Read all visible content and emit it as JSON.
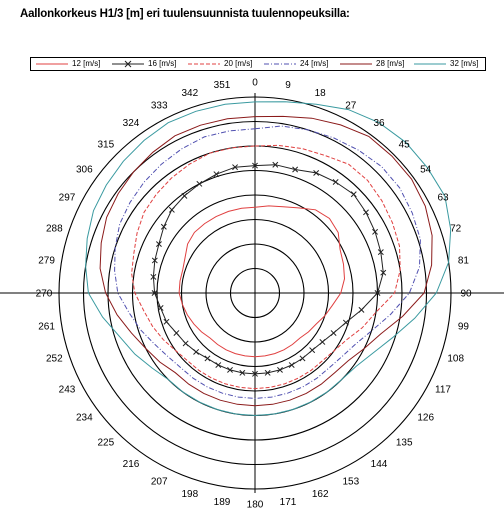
{
  "title": "Aallonkorkeus H1/3 [m] eri tuulensuunnista tuulennopeuksilla:",
  "chart_data": {
    "type": "radar",
    "angle_labels": [
      "0",
      "9",
      "18",
      "27",
      "36",
      "45",
      "54",
      "63",
      "72",
      "81",
      "90",
      "99",
      "108",
      "117",
      "126",
      "135",
      "144",
      "153",
      "162",
      "171",
      "180",
      "189",
      "198",
      "207",
      "216",
      "225",
      "234",
      "243",
      "252",
      "261",
      "270",
      "279",
      "288",
      "297",
      "306",
      "315",
      "324",
      "333",
      "342",
      "351"
    ],
    "ring_count": 8,
    "grid": true,
    "legend_position": "top",
    "series": [
      {
        "name": "12 [m/s]",
        "color": "#e04040",
        "dash": "",
        "marker": "",
        "values": [
          3.5,
          3.6,
          3.7,
          3.9,
          4.2,
          4.3,
          4.2,
          3.9,
          3.8,
          3.7,
          3.5,
          3.2,
          3.0,
          2.8,
          2.7,
          2.6,
          2.6,
          2.6,
          2.6,
          2.6,
          2.6,
          2.6,
          2.6,
          2.6,
          2.6,
          2.6,
          2.7,
          2.8,
          2.9,
          3.0,
          3.1,
          3.1,
          3.1,
          3.2,
          3.4,
          3.5,
          3.5,
          3.5,
          3.5,
          3.5
        ]
      },
      {
        "name": "16 [m/s]",
        "color": "#222222",
        "dash": "",
        "marker": "x",
        "values": [
          5.2,
          5.3,
          5.3,
          5.5,
          5.6,
          5.7,
          5.6,
          5.5,
          5.4,
          5.3,
          5.0,
          4.4,
          3.9,
          3.6,
          3.4,
          3.3,
          3.3,
          3.3,
          3.3,
          3.3,
          3.3,
          3.3,
          3.3,
          3.3,
          3.3,
          3.4,
          3.5,
          3.6,
          3.8,
          3.9,
          4.1,
          4.2,
          4.3,
          4.4,
          4.6,
          4.8,
          4.9,
          5.0,
          5.1,
          5.2
        ]
      },
      {
        "name": "20 [m/s]",
        "color": "#e04040",
        "dash": "4,2",
        "marker": "",
        "values": [
          6.0,
          6.1,
          6.2,
          6.3,
          6.5,
          6.5,
          6.4,
          6.3,
          6.2,
          6.0,
          5.7,
          5.0,
          4.6,
          4.2,
          4.0,
          3.9,
          3.9,
          3.9,
          3.9,
          3.9,
          3.9,
          3.9,
          3.9,
          3.9,
          3.9,
          3.9,
          4.0,
          4.2,
          4.4,
          4.6,
          4.9,
          5.1,
          5.2,
          5.4,
          5.6,
          5.7,
          5.8,
          5.9,
          6.0,
          6.0
        ]
      },
      {
        "name": "24 [m/s]",
        "color": "#5050b0",
        "dash": "5,2,1,2",
        "marker": "",
        "values": [
          6.7,
          6.9,
          7.0,
          7.1,
          7.2,
          7.3,
          7.3,
          7.2,
          7.1,
          6.8,
          6.3,
          5.6,
          5.0,
          4.6,
          4.4,
          4.3,
          4.3,
          4.3,
          4.3,
          4.3,
          4.3,
          4.3,
          4.3,
          4.3,
          4.3,
          4.3,
          4.4,
          4.6,
          4.9,
          5.2,
          5.6,
          5.8,
          6.0,
          6.2,
          6.3,
          6.4,
          6.5,
          6.6,
          6.7,
          6.7
        ]
      },
      {
        "name": "28 [m/s]",
        "color": "#8b1a1a",
        "dash": "",
        "marker": "",
        "values": [
          7.2,
          7.3,
          7.5,
          7.7,
          7.9,
          7.9,
          7.9,
          7.8,
          7.6,
          7.3,
          6.9,
          6.1,
          5.4,
          5.0,
          4.7,
          4.6,
          4.6,
          4.6,
          4.6,
          4.6,
          4.6,
          4.6,
          4.6,
          4.6,
          4.6,
          4.6,
          4.8,
          5.0,
          5.3,
          5.7,
          6.1,
          6.4,
          6.6,
          6.8,
          6.9,
          7.0,
          7.1,
          7.2,
          7.2,
          7.2
        ]
      },
      {
        "name": "32 [m/s]",
        "color": "#3a9aa0",
        "dash": "",
        "marker": "",
        "values": [
          7.8,
          7.9,
          8.1,
          8.4,
          8.6,
          8.7,
          8.7,
          8.7,
          8.4,
          8.0,
          7.4,
          6.6,
          5.9,
          5.4,
          5.1,
          5.0,
          5.0,
          5.0,
          5.0,
          5.0,
          5.0,
          5.0,
          5.0,
          5.0,
          5.0,
          5.0,
          5.2,
          5.5,
          5.8,
          6.3,
          6.8,
          7.0,
          7.2,
          7.4,
          7.5,
          7.6,
          7.7,
          7.8,
          7.8,
          7.8
        ]
      }
    ]
  }
}
